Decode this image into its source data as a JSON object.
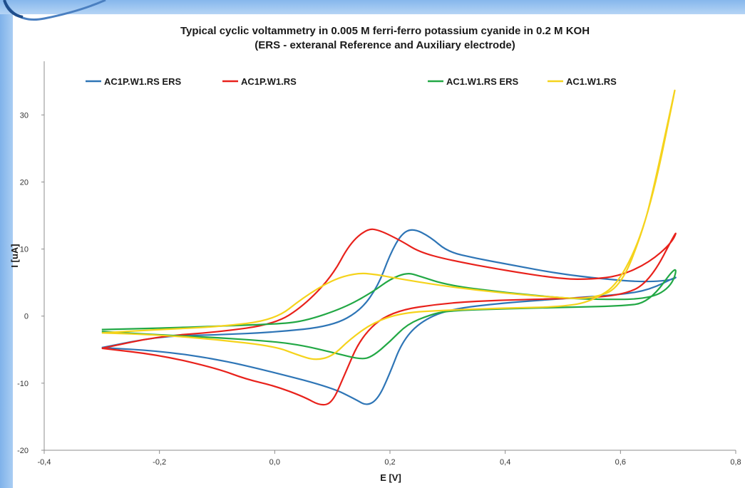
{
  "chart_data": {
    "type": "line",
    "title": "Typical cyclic voltammetry in 0.005 M ferri-ferro potassium cyanide in 0.2 M KOH",
    "subtitle": "(ERS - exteranal Reference and Auxiliary electrode)",
    "xlabel": "E [V]",
    "ylabel": "I [uA]",
    "xlim": [
      -0.4,
      0.8
    ],
    "ylim": [
      -20,
      38
    ],
    "xticks": [
      "-0,4",
      "-0,2",
      "0,0",
      "0,2",
      "0,4",
      "0,6",
      "0,8"
    ],
    "xtick_values": [
      -0.4,
      -0.2,
      0.0,
      0.2,
      0.4,
      0.6,
      0.8
    ],
    "yticks": [
      "-20",
      "-10",
      "0",
      "10",
      "20",
      "30"
    ],
    "ytick_values": [
      -20,
      -10,
      0,
      10,
      20,
      30
    ],
    "grid": false,
    "legend_position": "top",
    "series": [
      {
        "name": "AC1P.W1.RS",
        "name_suffix": "ERS",
        "color": "#2e75b6",
        "points": [
          [
            -0.3,
            -4.7
          ],
          [
            -0.2,
            -5.2
          ],
          [
            -0.1,
            -6.4
          ],
          [
            0.0,
            -8.4
          ],
          [
            0.1,
            -10.7
          ],
          [
            0.14,
            -12.4
          ],
          [
            0.16,
            -13.4
          ],
          [
            0.18,
            -12.3
          ],
          [
            0.2,
            -8.5
          ],
          [
            0.22,
            -4.0
          ],
          [
            0.25,
            -1.0
          ],
          [
            0.3,
            1.0
          ],
          [
            0.4,
            2.0
          ],
          [
            0.5,
            2.6
          ],
          [
            0.6,
            3.2
          ],
          [
            0.65,
            3.9
          ],
          [
            0.7,
            6.0
          ],
          [
            0.69,
            5.4
          ],
          [
            0.65,
            5.1
          ],
          [
            0.6,
            5.3
          ],
          [
            0.5,
            6.2
          ],
          [
            0.4,
            7.8
          ],
          [
            0.35,
            8.6
          ],
          [
            0.3,
            9.6
          ],
          [
            0.27,
            11.8
          ],
          [
            0.24,
            13.1
          ],
          [
            0.22,
            12.3
          ],
          [
            0.2,
            9.2
          ],
          [
            0.18,
            4.6
          ],
          [
            0.15,
            0.9
          ],
          [
            0.1,
            -1.5
          ],
          [
            0.0,
            -2.4
          ],
          [
            -0.1,
            -2.8
          ],
          [
            -0.2,
            -3.0
          ],
          [
            -0.3,
            -4.7
          ]
        ]
      },
      {
        "name": "AC1P.W1.RS",
        "name_suffix": "",
        "color": "#e8211b",
        "points": [
          [
            -0.3,
            -4.8
          ],
          [
            -0.2,
            -5.8
          ],
          [
            -0.1,
            -7.8
          ],
          [
            -0.05,
            -9.4
          ],
          [
            0.0,
            -10.4
          ],
          [
            0.05,
            -12.0
          ],
          [
            0.08,
            -13.4
          ],
          [
            0.1,
            -12.9
          ],
          [
            0.12,
            -9.0
          ],
          [
            0.15,
            -3.0
          ],
          [
            0.2,
            0.7
          ],
          [
            0.3,
            2.0
          ],
          [
            0.4,
            2.4
          ],
          [
            0.5,
            2.6
          ],
          [
            0.6,
            3.0
          ],
          [
            0.65,
            5.0
          ],
          [
            0.7,
            13.2
          ],
          [
            0.69,
            11.0
          ],
          [
            0.65,
            8.0
          ],
          [
            0.6,
            6.0
          ],
          [
            0.55,
            5.5
          ],
          [
            0.5,
            5.5
          ],
          [
            0.4,
            6.8
          ],
          [
            0.3,
            8.4
          ],
          [
            0.25,
            9.6
          ],
          [
            0.22,
            11.2
          ],
          [
            0.18,
            12.9
          ],
          [
            0.16,
            13.0
          ],
          [
            0.13,
            10.8
          ],
          [
            0.1,
            6.0
          ],
          [
            0.05,
            1.5
          ],
          [
            0.0,
            -1.2
          ],
          [
            -0.1,
            -2.4
          ],
          [
            -0.2,
            -3.0
          ],
          [
            -0.3,
            -4.8
          ]
        ]
      },
      {
        "name": "AC1.W1.RS",
        "name_suffix": "ERS",
        "color": "#22a845",
        "points": [
          [
            -0.3,
            -2.3
          ],
          [
            -0.2,
            -2.8
          ],
          [
            -0.1,
            -3.2
          ],
          [
            0.0,
            -3.8
          ],
          [
            0.05,
            -4.4
          ],
          [
            0.1,
            -5.4
          ],
          [
            0.15,
            -6.5
          ],
          [
            0.17,
            -6.0
          ],
          [
            0.2,
            -3.8
          ],
          [
            0.23,
            -1.2
          ],
          [
            0.27,
            0.2
          ],
          [
            0.3,
            0.8
          ],
          [
            0.4,
            1.1
          ],
          [
            0.5,
            1.3
          ],
          [
            0.6,
            1.5
          ],
          [
            0.65,
            2.0
          ],
          [
            0.7,
            8.0
          ],
          [
            0.69,
            4.5
          ],
          [
            0.65,
            2.5
          ],
          [
            0.55,
            2.5
          ],
          [
            0.5,
            2.7
          ],
          [
            0.4,
            3.5
          ],
          [
            0.3,
            4.6
          ],
          [
            0.25,
            6.0
          ],
          [
            0.23,
            6.5
          ],
          [
            0.2,
            5.5
          ],
          [
            0.17,
            3.6
          ],
          [
            0.12,
            1.2
          ],
          [
            0.05,
            -0.8
          ],
          [
            0.0,
            -1.2
          ],
          [
            -0.1,
            -1.5
          ],
          [
            -0.2,
            -1.8
          ],
          [
            -0.3,
            -2.0
          ]
        ]
      },
      {
        "name": "AC1.W1.RS",
        "name_suffix": "",
        "color": "#f5d31c",
        "points": [
          [
            -0.3,
            -2.5
          ],
          [
            -0.2,
            -2.8
          ],
          [
            -0.1,
            -3.5
          ],
          [
            0.0,
            -4.5
          ],
          [
            0.04,
            -5.8
          ],
          [
            0.07,
            -6.6
          ],
          [
            0.1,
            -6.0
          ],
          [
            0.13,
            -3.5
          ],
          [
            0.17,
            -1.0
          ],
          [
            0.22,
            0.5
          ],
          [
            0.3,
            0.9
          ],
          [
            0.4,
            1.2
          ],
          [
            0.5,
            1.4
          ],
          [
            0.55,
            2.2
          ],
          [
            0.6,
            5.0
          ],
          [
            0.65,
            15.0
          ],
          [
            0.7,
            36.0
          ],
          [
            0.685,
            30.0
          ],
          [
            0.66,
            20.0
          ],
          [
            0.64,
            13.0
          ],
          [
            0.6,
            4.2
          ],
          [
            0.55,
            2.6
          ],
          [
            0.5,
            2.7
          ],
          [
            0.4,
            3.4
          ],
          [
            0.3,
            4.4
          ],
          [
            0.22,
            5.5
          ],
          [
            0.17,
            6.3
          ],
          [
            0.14,
            6.4
          ],
          [
            0.1,
            5.4
          ],
          [
            0.05,
            2.8
          ],
          [
            0.0,
            -0.6
          ],
          [
            -0.1,
            -1.6
          ],
          [
            -0.2,
            -2.0
          ],
          [
            -0.3,
            -2.5
          ]
        ]
      }
    ]
  }
}
